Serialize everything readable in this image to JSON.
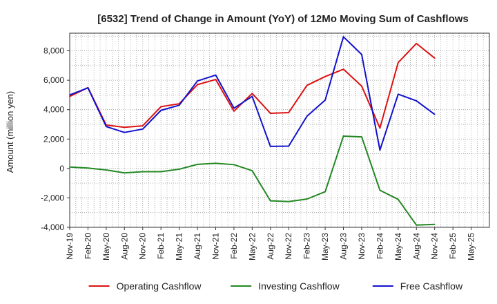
{
  "chart_data": {
    "type": "line",
    "title": "[6532]  Trend of Change in Amount (YoY) of 12Mo Moving Sum of Cashflows",
    "xlabel": "",
    "ylabel": "Amount (million yen)",
    "ylim": [
      -4000,
      9200
    ],
    "yticks": [
      -4000,
      -2000,
      0,
      2000,
      4000,
      6000,
      8000
    ],
    "ytick_labels": [
      "-4,000",
      "-2,000",
      "0",
      "2,000",
      "4,000",
      "6,000",
      "8,000"
    ],
    "categories": [
      "Nov-19",
      "Feb-20",
      "May-20",
      "Aug-20",
      "Nov-20",
      "Feb-21",
      "May-21",
      "Aug-21",
      "Nov-21",
      "Feb-22",
      "May-22",
      "Aug-22",
      "Nov-22",
      "Feb-23",
      "May-23",
      "Aug-23",
      "Nov-23",
      "Feb-24",
      "May-24",
      "Aug-24",
      "Nov-24",
      "Feb-25",
      "May-25"
    ],
    "grid": true,
    "legend_position": "bottom",
    "series": [
      {
        "name": "Operating Cashflow",
        "color": "#dd1111",
        "values": [
          4900,
          5500,
          2950,
          2800,
          2900,
          4200,
          4400,
          5700,
          6050,
          3900,
          5100,
          3750,
          3800,
          5650,
          6250,
          6750,
          5600,
          2750,
          7200,
          8500,
          7500,
          null,
          null
        ]
      },
      {
        "name": "Investing Cashflow",
        "color": "#228822",
        "values": [
          100,
          30,
          -100,
          -300,
          -220,
          -220,
          -50,
          280,
          350,
          260,
          -150,
          -2200,
          -2250,
          -2080,
          -1580,
          2200,
          2150,
          -1480,
          -2100,
          -3850,
          -3800,
          null,
          null
        ]
      },
      {
        "name": "Free Cashflow",
        "color": "#1111cc",
        "values": [
          5000,
          5480,
          2850,
          2450,
          2680,
          3950,
          4300,
          5950,
          6350,
          4100,
          4900,
          1500,
          1520,
          3550,
          4650,
          8950,
          7750,
          1250,
          5050,
          4600,
          3680,
          null,
          null
        ]
      }
    ]
  }
}
